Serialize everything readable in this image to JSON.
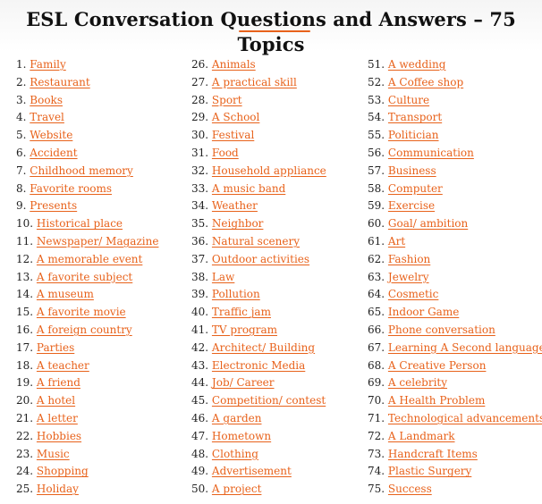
{
  "title": "ESL Conversation Questions and Answers – 75 Topics",
  "colors": {
    "link": "#e8621b",
    "title": "#111111",
    "text": "#1f1f1f"
  },
  "columns": [
    [
      {
        "number": "1.",
        "topic": "Family"
      },
      {
        "number": "2.",
        "topic": "Restaurant"
      },
      {
        "number": "3.",
        "topic": "Books"
      },
      {
        "number": "4.",
        "topic": "Travel"
      },
      {
        "number": "5.",
        "topic": "Website"
      },
      {
        "number": "6.",
        "topic": "Accident"
      },
      {
        "number": "7.",
        "topic": "Childhood memory"
      },
      {
        "number": "8.",
        "topic": "Favorite rooms"
      },
      {
        "number": "9.",
        "topic": "Presents"
      },
      {
        "number": "10.",
        "topic": "Historical place"
      },
      {
        "number": "11.",
        "topic": "Newspaper/ Magazine"
      },
      {
        "number": "12.",
        "topic": "A memorable event"
      },
      {
        "number": "13.",
        "topic": "A favorite subject"
      },
      {
        "number": "14.",
        "topic": "A museum"
      },
      {
        "number": "15.",
        "topic": "A favorite movie"
      },
      {
        "number": "16.",
        "topic": "A foreign country"
      },
      {
        "number": "17.",
        "topic": "Parties"
      },
      {
        "number": "18.",
        "topic": "A teacher"
      },
      {
        "number": "19.",
        "topic": "A friend"
      },
      {
        "number": "20.",
        "topic": "A hotel"
      },
      {
        "number": "21.",
        "topic": "A letter"
      },
      {
        "number": "22.",
        "topic": "Hobbies"
      },
      {
        "number": "23.",
        "topic": "Music"
      },
      {
        "number": "24.",
        "topic": "Shopping"
      },
      {
        "number": "25.",
        "topic": "Holiday"
      }
    ],
    [
      {
        "number": "26.",
        "topic": "Animals"
      },
      {
        "number": "27.",
        "topic": "A practical skill"
      },
      {
        "number": "28.",
        "topic": "Sport"
      },
      {
        "number": "29.",
        "topic": "A School"
      },
      {
        "number": "30.",
        "topic": "Festival"
      },
      {
        "number": "31.",
        "topic": "Food"
      },
      {
        "number": "32.",
        "topic": "Household appliance"
      },
      {
        "number": "33.",
        "topic": "A music band"
      },
      {
        "number": "34.",
        "topic": "Weather"
      },
      {
        "number": "35.",
        "topic": "Neighbor"
      },
      {
        "number": "36.",
        "topic": "Natural scenery"
      },
      {
        "number": "37.",
        "topic": "Outdoor activities"
      },
      {
        "number": "38.",
        "topic": "Law"
      },
      {
        "number": "39.",
        "topic": "Pollution"
      },
      {
        "number": "40.",
        "topic": "Traffic jam"
      },
      {
        "number": "41.",
        "topic": "TV program"
      },
      {
        "number": "42.",
        "topic": "Architect/ Building"
      },
      {
        "number": "43.",
        "topic": "Electronic Media"
      },
      {
        "number": "44.",
        "topic": "Job/ Career"
      },
      {
        "number": "45.",
        "topic": "Competition/ contest"
      },
      {
        "number": "46.",
        "topic": "A garden"
      },
      {
        "number": "47.",
        "topic": "Hometown"
      },
      {
        "number": "48.",
        "topic": "Clothing"
      },
      {
        "number": "49.",
        "topic": "Advertisement"
      },
      {
        "number": "50.",
        "topic": "A project"
      }
    ],
    [
      {
        "number": "51.",
        "topic": "A wedding"
      },
      {
        "number": "52.",
        "topic": "A Coffee shop"
      },
      {
        "number": "53.",
        "topic": "Culture"
      },
      {
        "number": "54.",
        "topic": "Transport"
      },
      {
        "number": "55.",
        "topic": "Politician"
      },
      {
        "number": "56.",
        "topic": "Communication"
      },
      {
        "number": "57.",
        "topic": "Business"
      },
      {
        "number": "58.",
        "topic": "Computer"
      },
      {
        "number": "59.",
        "topic": "Exercise"
      },
      {
        "number": "60.",
        "topic": "Goal/ ambition"
      },
      {
        "number": "61.",
        "topic": "Art"
      },
      {
        "number": "62.",
        "topic": "Fashion"
      },
      {
        "number": "63.",
        "topic": "Jewelry"
      },
      {
        "number": "64.",
        "topic": "Cosmetic"
      },
      {
        "number": "65.",
        "topic": "Indoor Game"
      },
      {
        "number": "66.",
        "topic": "Phone conversation"
      },
      {
        "number": "67.",
        "topic": "Learning A Second language"
      },
      {
        "number": "68.",
        "topic": "A Creative Person"
      },
      {
        "number": "69.",
        "topic": "A celebrity"
      },
      {
        "number": "70.",
        "topic": "A Health Problem"
      },
      {
        "number": "71.",
        "topic": "Technological advancements"
      },
      {
        "number": "72.",
        "topic": "A Landmark"
      },
      {
        "number": "73.",
        "topic": "Handcraft Items"
      },
      {
        "number": "74.",
        "topic": "Plastic Surgery"
      },
      {
        "number": "75.",
        "topic": "Success"
      }
    ]
  ]
}
